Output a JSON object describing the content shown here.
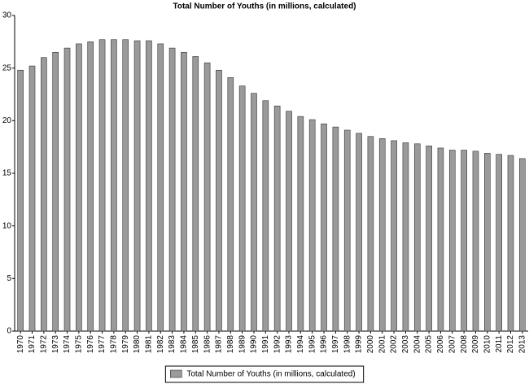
{
  "chart_data": {
    "type": "bar",
    "title": "Total Number of Youths (in millions, calculated)",
    "categories": [
      "1970",
      "1971",
      "1972",
      "1973",
      "1974",
      "1975",
      "1976",
      "1977",
      "1978",
      "1979",
      "1980",
      "1981",
      "1982",
      "1983",
      "1984",
      "1985",
      "1986",
      "1987",
      "1988",
      "1989",
      "1990",
      "1991",
      "1992",
      "1993",
      "1994",
      "1995",
      "1996",
      "1997",
      "1998",
      "1999",
      "2000",
      "2001",
      "2002",
      "2003",
      "2004",
      "2005",
      "2006",
      "2007",
      "2008",
      "2009",
      "2010",
      "2011",
      "2012",
      "2013"
    ],
    "series": [
      {
        "name": "Total Number of Youths (in millions, calculated)",
        "color": "#9a9a9a",
        "values": [
          24.8,
          25.2,
          26.0,
          26.5,
          26.9,
          27.3,
          27.5,
          27.7,
          27.7,
          27.7,
          27.6,
          27.6,
          27.3,
          26.9,
          26.5,
          26.1,
          25.5,
          24.8,
          24.1,
          23.3,
          22.6,
          21.9,
          21.4,
          20.9,
          20.4,
          20.1,
          19.7,
          19.4,
          19.1,
          18.8,
          18.5,
          18.3,
          18.1,
          17.9,
          17.8,
          17.6,
          17.4,
          17.2,
          17.2,
          17.1,
          16.9,
          16.8,
          16.7,
          16.4
        ]
      }
    ],
    "ylim": [
      0,
      30
    ],
    "yticks": [
      0,
      5,
      10,
      15,
      20,
      25,
      30
    ],
    "grid": false,
    "legend": "bottom"
  }
}
